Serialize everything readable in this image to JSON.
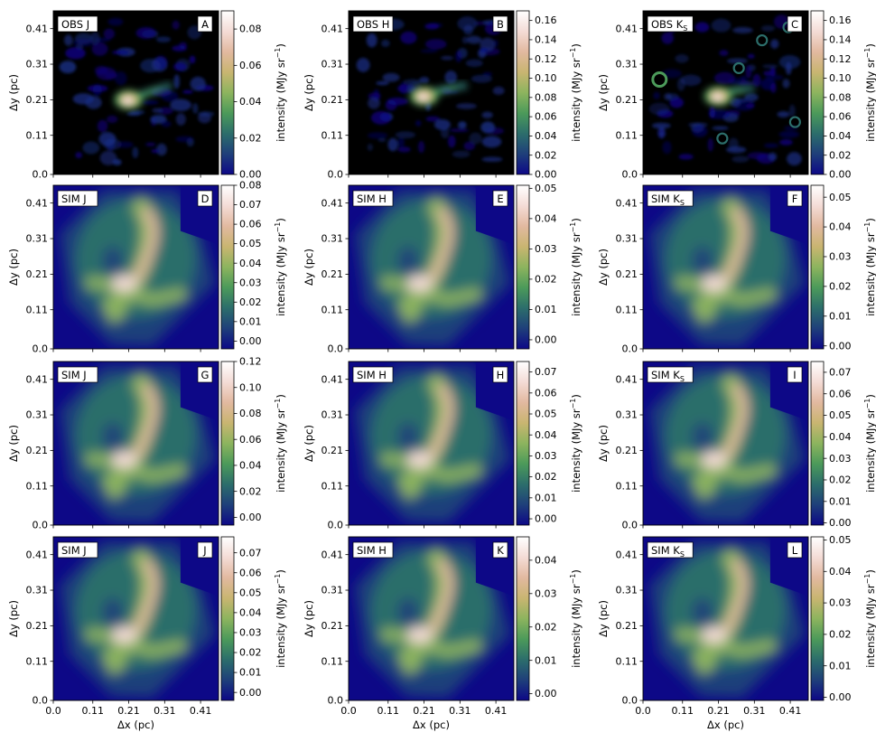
{
  "figure": {
    "common_ylabel": "Δy (pc)",
    "common_xlabel": "Δx (pc)",
    "colorbar_label": "intensity (MJy sr",
    "colorbar_label_exp": "−1",
    "colorbar_label_close": ")"
  },
  "chart_data": [
    {
      "type": "heatmap",
      "row": 0,
      "col": 0,
      "kind": "obs",
      "band_label": "OBS J",
      "band_sub": "",
      "panel_letter": "A",
      "xlim": [
        0.0,
        0.46
      ],
      "ylim": [
        0.0,
        0.46
      ],
      "x_ticks": [
        "0.0",
        "0.11",
        "0.21",
        "0.31",
        "0.41"
      ],
      "y_ticks": [
        "0.0",
        "0.11",
        "0.21",
        "0.31",
        "0.41"
      ],
      "colorbar": {
        "vmin": 0.0,
        "vmax": 0.09,
        "ticks": [
          0.0,
          0.02,
          0.04,
          0.06,
          0.08
        ],
        "tick_labels": [
          "0.00",
          "0.02",
          "0.04",
          "0.06",
          "0.08"
        ]
      },
      "features": {
        "bright_core": [
          0.21,
          0.21
        ],
        "stream_to": [
          0.33,
          0.25
        ]
      }
    },
    {
      "type": "heatmap",
      "row": 0,
      "col": 1,
      "kind": "obs",
      "band_label": "OBS H",
      "band_sub": "",
      "panel_letter": "B",
      "xlim": [
        0.0,
        0.46
      ],
      "ylim": [
        0.0,
        0.46
      ],
      "x_ticks": [
        "0.0",
        "0.11",
        "0.21",
        "0.31",
        "0.41"
      ],
      "y_ticks": [
        "0.0",
        "0.11",
        "0.21",
        "0.31",
        "0.41"
      ],
      "colorbar": {
        "vmin": 0.0,
        "vmax": 0.17,
        "ticks": [
          0.0,
          0.02,
          0.04,
          0.06,
          0.08,
          0.1,
          0.12,
          0.14,
          0.16
        ],
        "tick_labels": [
          "0.00",
          "0.02",
          "0.04",
          "0.06",
          "0.08",
          "0.10",
          "0.12",
          "0.14",
          "0.16"
        ]
      },
      "features": {
        "bright_core": [
          0.21,
          0.22
        ],
        "stream_to": [
          0.33,
          0.25
        ]
      }
    },
    {
      "type": "heatmap",
      "row": 0,
      "col": 2,
      "kind": "obs",
      "band_label": "OBS K",
      "band_sub": "S",
      "panel_letter": "C",
      "xlim": [
        0.0,
        0.46
      ],
      "ylim": [
        0.0,
        0.46
      ],
      "x_ticks": [
        "0.0",
        "0.11",
        "0.21",
        "0.31",
        "0.41"
      ],
      "y_ticks": [
        "0.0",
        "0.11",
        "0.21",
        "0.31",
        "0.41"
      ],
      "colorbar": {
        "vmin": 0.0,
        "vmax": 0.17,
        "ticks": [
          0.0,
          0.02,
          0.04,
          0.06,
          0.08,
          0.1,
          0.12,
          0.14,
          0.16
        ],
        "tick_labels": [
          "0.00",
          "0.02",
          "0.04",
          "0.06",
          "0.08",
          "0.10",
          "0.12",
          "0.14",
          "0.16"
        ]
      },
      "features": {
        "bright_core": [
          0.21,
          0.22
        ],
        "stream_to": [
          0.31,
          0.24
        ]
      }
    },
    {
      "type": "heatmap",
      "row": 1,
      "col": 0,
      "kind": "sim",
      "band_label": "SIM J",
      "band_sub": "",
      "panel_letter": "D",
      "xlim": [
        0.0,
        0.46
      ],
      "ylim": [
        0.0,
        0.46
      ],
      "x_ticks": [
        "0.0",
        "0.11",
        "0.21",
        "0.31",
        "0.41"
      ],
      "y_ticks": [
        "0.0",
        "0.11",
        "0.21",
        "0.31",
        "0.41"
      ],
      "colorbar": {
        "vmin": -0.004,
        "vmax": 0.08,
        "ticks": [
          0.0,
          0.01,
          0.02,
          0.03,
          0.04,
          0.05,
          0.06,
          0.07,
          0.08
        ],
        "tick_labels": [
          "0.00",
          "0.01",
          "0.02",
          "0.03",
          "0.04",
          "0.05",
          "0.06",
          "0.07",
          "0.08"
        ]
      }
    },
    {
      "type": "heatmap",
      "row": 1,
      "col": 1,
      "kind": "sim",
      "band_label": "SIM H",
      "band_sub": "",
      "panel_letter": "E",
      "xlim": [
        0.0,
        0.46
      ],
      "ylim": [
        0.0,
        0.46
      ],
      "x_ticks": [
        "0.0",
        "0.11",
        "0.21",
        "0.31",
        "0.41"
      ],
      "y_ticks": [
        "0.0",
        "0.11",
        "0.21",
        "0.31",
        "0.41"
      ],
      "colorbar": {
        "vmin": -0.003,
        "vmax": 0.051,
        "ticks": [
          0.0,
          0.01,
          0.02,
          0.03,
          0.04,
          0.05
        ],
        "tick_labels": [
          "0.00",
          "0.01",
          "0.02",
          "0.03",
          "0.04",
          "0.05"
        ]
      }
    },
    {
      "type": "heatmap",
      "row": 1,
      "col": 2,
      "kind": "sim",
      "band_label": "SIM K",
      "band_sub": "S",
      "panel_letter": "F",
      "xlim": [
        0.0,
        0.46
      ],
      "ylim": [
        0.0,
        0.46
      ],
      "x_ticks": [
        "0.0",
        "0.11",
        "0.21",
        "0.31",
        "0.41"
      ],
      "y_ticks": [
        "0.0",
        "0.11",
        "0.21",
        "0.31",
        "0.41"
      ],
      "colorbar": {
        "vmin": -0.001,
        "vmax": 0.054,
        "ticks": [
          0.0,
          0.01,
          0.02,
          0.03,
          0.04,
          0.05
        ],
        "tick_labels": [
          "0.00",
          "0.01",
          "0.02",
          "0.03",
          "0.04",
          "0.05"
        ]
      }
    },
    {
      "type": "heatmap",
      "row": 2,
      "col": 0,
      "kind": "sim",
      "band_label": "SIM J",
      "band_sub": "",
      "panel_letter": "G",
      "xlim": [
        0.0,
        0.46
      ],
      "ylim": [
        0.0,
        0.46
      ],
      "x_ticks": [
        "0.0",
        "0.11",
        "0.21",
        "0.31",
        "0.41"
      ],
      "y_ticks": [
        "0.0",
        "0.11",
        "0.21",
        "0.31",
        "0.41"
      ],
      "colorbar": {
        "vmin": -0.006,
        "vmax": 0.12,
        "ticks": [
          0.0,
          0.02,
          0.04,
          0.06,
          0.08,
          0.1,
          0.12
        ],
        "tick_labels": [
          "0.00",
          "0.02",
          "0.04",
          "0.06",
          "0.08",
          "0.10",
          "0.12"
        ]
      }
    },
    {
      "type": "heatmap",
      "row": 2,
      "col": 1,
      "kind": "sim",
      "band_label": "SIM H",
      "band_sub": "",
      "panel_letter": "H",
      "xlim": [
        0.0,
        0.46
      ],
      "ylim": [
        0.0,
        0.46
      ],
      "x_ticks": [
        "0.0",
        "0.11",
        "0.21",
        "0.31",
        "0.41"
      ],
      "y_ticks": [
        "0.0",
        "0.11",
        "0.21",
        "0.31",
        "0.41"
      ],
      "colorbar": {
        "vmin": -0.003,
        "vmax": 0.075,
        "ticks": [
          0.0,
          0.01,
          0.02,
          0.03,
          0.04,
          0.05,
          0.06,
          0.07
        ],
        "tick_labels": [
          "0.00",
          "0.01",
          "0.02",
          "0.03",
          "0.04",
          "0.05",
          "0.06",
          "0.07"
        ]
      }
    },
    {
      "type": "heatmap",
      "row": 2,
      "col": 2,
      "kind": "sim",
      "band_label": "SIM K",
      "band_sub": "S",
      "panel_letter": "I",
      "xlim": [
        0.0,
        0.46
      ],
      "ylim": [
        0.0,
        0.46
      ],
      "x_ticks": [
        "0.0",
        "0.11",
        "0.21",
        "0.31",
        "0.41"
      ],
      "y_ticks": [
        "0.0",
        "0.11",
        "0.21",
        "0.31",
        "0.41"
      ],
      "colorbar": {
        "vmin": -0.001,
        "vmax": 0.075,
        "ticks": [
          0.0,
          0.01,
          0.02,
          0.03,
          0.04,
          0.05,
          0.06,
          0.07
        ],
        "tick_labels": [
          "0.00",
          "0.01",
          "0.02",
          "0.03",
          "0.04",
          "0.05",
          "0.06",
          "0.07"
        ]
      }
    },
    {
      "type": "heatmap",
      "row": 3,
      "col": 0,
      "kind": "sim",
      "band_label": "SIM J",
      "band_sub": "",
      "panel_letter": "J",
      "xlim": [
        0.0,
        0.46
      ],
      "ylim": [
        0.0,
        0.46
      ],
      "x_ticks": [
        "0.0",
        "0.11",
        "0.21",
        "0.31",
        "0.41"
      ],
      "y_ticks": [
        "0.0",
        "0.11",
        "0.21",
        "0.31",
        "0.41"
      ],
      "colorbar": {
        "vmin": -0.004,
        "vmax": 0.078,
        "ticks": [
          0.0,
          0.01,
          0.02,
          0.03,
          0.04,
          0.05,
          0.06,
          0.07
        ],
        "tick_labels": [
          "0.00",
          "0.01",
          "0.02",
          "0.03",
          "0.04",
          "0.05",
          "0.06",
          "0.07"
        ]
      }
    },
    {
      "type": "heatmap",
      "row": 3,
      "col": 1,
      "kind": "sim",
      "band_label": "SIM H",
      "band_sub": "",
      "panel_letter": "K",
      "xlim": [
        0.0,
        0.46
      ],
      "ylim": [
        0.0,
        0.46
      ],
      "x_ticks": [
        "0.0",
        "0.11",
        "0.21",
        "0.31",
        "0.41"
      ],
      "y_ticks": [
        "0.0",
        "0.11",
        "0.21",
        "0.31",
        "0.41"
      ],
      "colorbar": {
        "vmin": -0.002,
        "vmax": 0.047,
        "ticks": [
          0.0,
          0.01,
          0.02,
          0.03,
          0.04
        ],
        "tick_labels": [
          "0.00",
          "0.01",
          "0.02",
          "0.03",
          "0.04"
        ]
      }
    },
    {
      "type": "heatmap",
      "row": 3,
      "col": 2,
      "kind": "sim",
      "band_label": "SIM K",
      "band_sub": "S",
      "panel_letter": "L",
      "xlim": [
        0.0,
        0.46
      ],
      "ylim": [
        0.0,
        0.46
      ],
      "x_ticks": [
        "0.0",
        "0.11",
        "0.21",
        "0.31",
        "0.41"
      ],
      "y_ticks": [
        "0.0",
        "0.11",
        "0.21",
        "0.31",
        "0.41"
      ],
      "colorbar": {
        "vmin": -0.001,
        "vmax": 0.051,
        "ticks": [
          0.0,
          0.01,
          0.02,
          0.03,
          0.04,
          0.05
        ],
        "tick_labels": [
          "0.00",
          "0.01",
          "0.02",
          "0.03",
          "0.04",
          "0.05"
        ]
      }
    }
  ],
  "colormap": [
    "#0d0887",
    "#1f3f7a",
    "#2c6e6b",
    "#4c9a5a",
    "#8db45e",
    "#c9b571",
    "#e2b9a0",
    "#f4dcd6",
    "#ffffff"
  ]
}
